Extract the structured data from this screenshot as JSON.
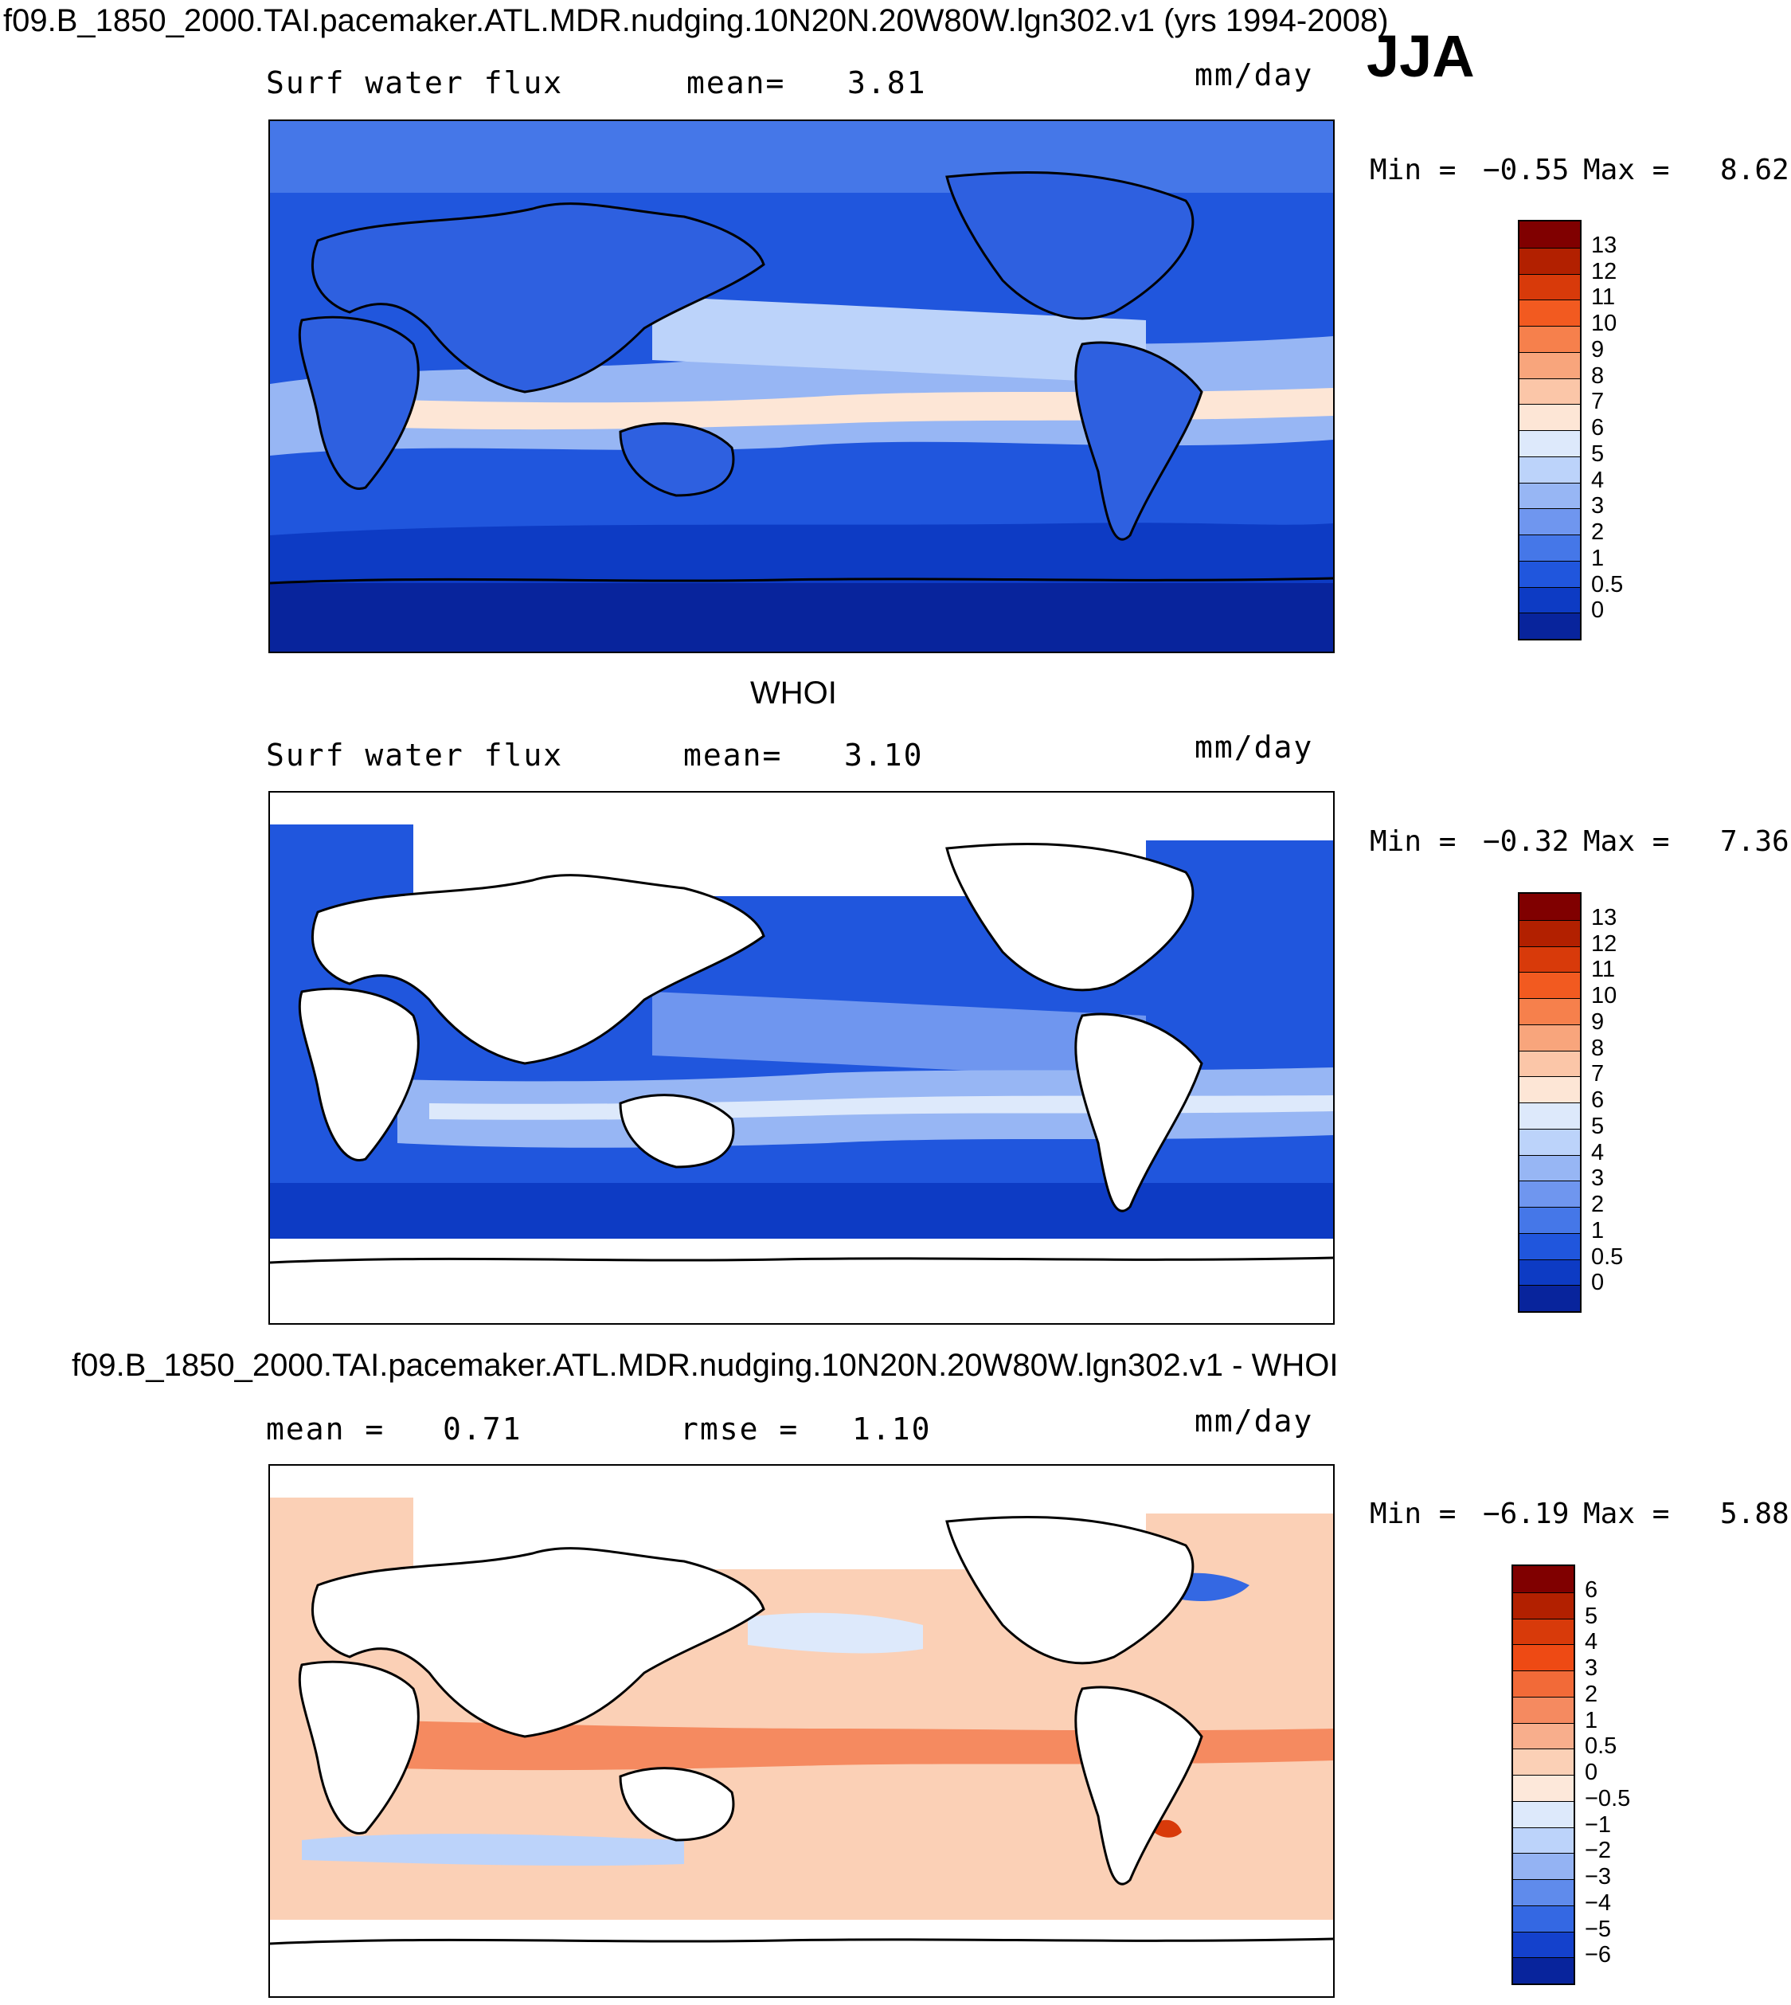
{
  "title": "f09.B_1850_2000.TAI.pacemaker.ATL.MDR.nudging.10N20N.20W80W.lgn302.v1 (yrs 1994-2008)",
  "season": "JJA",
  "panels": [
    {
      "id": "model",
      "header": "",
      "label_left": "Surf water flux",
      "mean_label": "mean=",
      "mean_value": "3.81",
      "units": "mm/day",
      "min_label": "Min =",
      "min_value": "−0.55",
      "max_label": "Max =",
      "max_value": "8.62"
    },
    {
      "id": "obs",
      "header": "WHOI",
      "label_left": "Surf water flux",
      "mean_label": "mean=",
      "mean_value": "3.10",
      "units": "mm/day",
      "min_label": "Min =",
      "min_value": "−0.32",
      "max_label": "Max =",
      "max_value": "7.36"
    },
    {
      "id": "diff",
      "header": "f09.B_1850_2000.TAI.pacemaker.ATL.MDR.nudging.10N20N.20W80W.lgn302.v1 - WHOI",
      "label_left": "mean =",
      "mean_value": "0.71",
      "rmse_label": "rmse =",
      "rmse_value": "1.10",
      "units": "mm/day",
      "min_label": "Min =",
      "min_value": "−6.19",
      "max_label": "Max =",
      "max_value": "5.88"
    }
  ],
  "colorbars": {
    "abs": {
      "levels": [
        "13",
        "12",
        "11",
        "10",
        "9",
        "8",
        "7",
        "6",
        "5",
        "4",
        "3",
        "2",
        "1",
        "0.5",
        "0"
      ],
      "colors": [
        "#800000",
        "#b22000",
        "#d83a0a",
        "#f25a20",
        "#f6804c",
        "#f8a57c",
        "#fbc6a8",
        "#fde6d6",
        "#dde9fb",
        "#bcd3fa",
        "#97b6f4",
        "#6f96ef",
        "#4577e8",
        "#2056dd",
        "#0d3bc4",
        "#08249c"
      ]
    },
    "diff": {
      "levels": [
        "6",
        "5",
        "4",
        "3",
        "2",
        "1",
        "0.5",
        "0",
        "−0.5",
        "−1",
        "−2",
        "−3",
        "−4",
        "−5",
        "−6"
      ],
      "colors": [
        "#800000",
        "#b22000",
        "#d83a0a",
        "#ee4a14",
        "#f26a38",
        "#f58a60",
        "#f8ae8c",
        "#fbd0b6",
        "#fde8da",
        "#dde9fb",
        "#bcd3fa",
        "#94b3f3",
        "#5f8bec",
        "#3468e3",
        "#1441cc",
        "#08249c"
      ]
    }
  },
  "chart_data": [
    {
      "type": "heatmap",
      "title": "Surf water flux",
      "subtitle": "mean= 3.81",
      "units": "mm/day",
      "min": -0.55,
      "max": 8.62,
      "mean": 3.81,
      "contour_levels": [
        0,
        0.5,
        1,
        2,
        3,
        4,
        5,
        6,
        7,
        8,
        9,
        10,
        11,
        12,
        13
      ]
    },
    {
      "type": "heatmap",
      "title": "WHOI",
      "subtitle": "Surf water flux mean= 3.10",
      "units": "mm/day",
      "min": -0.32,
      "max": 7.36,
      "mean": 3.1,
      "contour_levels": [
        0,
        0.5,
        1,
        2,
        3,
        4,
        5,
        6,
        7,
        8,
        9,
        10,
        11,
        12,
        13
      ]
    },
    {
      "type": "heatmap",
      "title": "f09.B_1850_2000.TAI.pacemaker.ATL.MDR.nudging.10N20N.20W80W.lgn302.v1 - WHOI",
      "units": "mm/day",
      "min": -6.19,
      "max": 5.88,
      "mean": 0.71,
      "rmse": 1.1,
      "contour_levels": [
        -6,
        -5,
        -4,
        -3,
        -2,
        -1,
        -0.5,
        0,
        0.5,
        1,
        2,
        3,
        4,
        5,
        6
      ]
    }
  ]
}
